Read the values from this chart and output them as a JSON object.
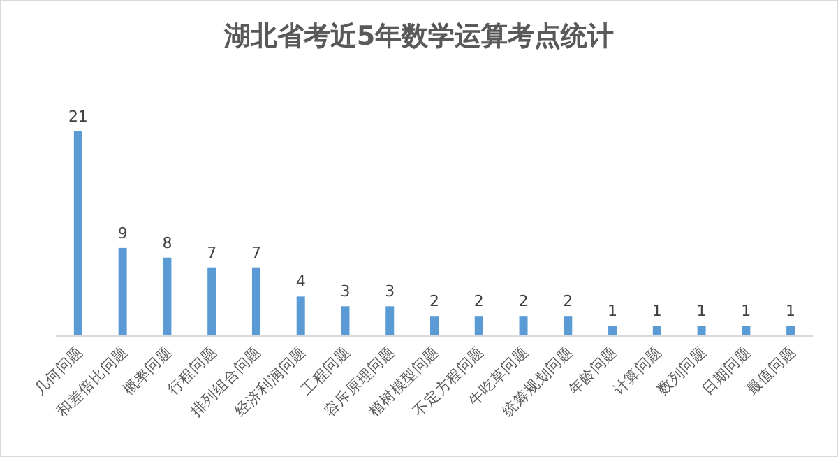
{
  "chart_data": {
    "type": "bar",
    "title": "湖北省考近5年数学运算考点统计",
    "categories": [
      "几何问题",
      "和差倍比问题",
      "概率问题",
      "行程问题",
      "排列组合问题",
      "经济利润问题",
      "工程问题",
      "容斥原理问题",
      "植树模型问题",
      "不定方程问题",
      "牛吃草问题",
      "统筹规划问题",
      "年龄问题",
      "计算问题",
      "数列问题",
      "日期问题",
      "最值问题"
    ],
    "values": [
      21,
      9,
      8,
      7,
      7,
      4,
      3,
      3,
      2,
      2,
      2,
      2,
      1,
      1,
      1,
      1,
      1
    ],
    "color": "#5b9bd5",
    "data_labels": true
  }
}
